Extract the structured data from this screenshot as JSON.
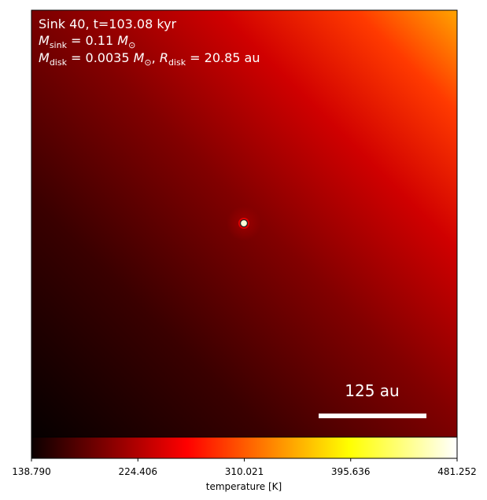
{
  "chart_data": {
    "type": "image",
    "annotation_lines": [
      [
        "Sink 40, t=103.08 kyr"
      ],
      [
        "M",
        "sink",
        " = 0.11 ",
        "M",
        "⊙"
      ],
      [
        "M",
        "disk",
        " = 0.0035 ",
        "M",
        "⊙",
        ", ",
        "R",
        "disk",
        " = 20.85 au"
      ]
    ],
    "scale_bar_label": "125 au",
    "colormap": "hot",
    "colorbar_label": "temperature [K]",
    "clim": [
      138.79,
      481.252
    ],
    "cticks": [
      {
        "value": 138.79,
        "label": "138.790"
      },
      {
        "value": 224.406,
        "label": "224.406"
      },
      {
        "value": 310.021,
        "label": "310.021"
      },
      {
        "value": 395.636,
        "label": "395.636"
      },
      {
        "value": 481.252,
        "label": "481.252"
      }
    ]
  }
}
